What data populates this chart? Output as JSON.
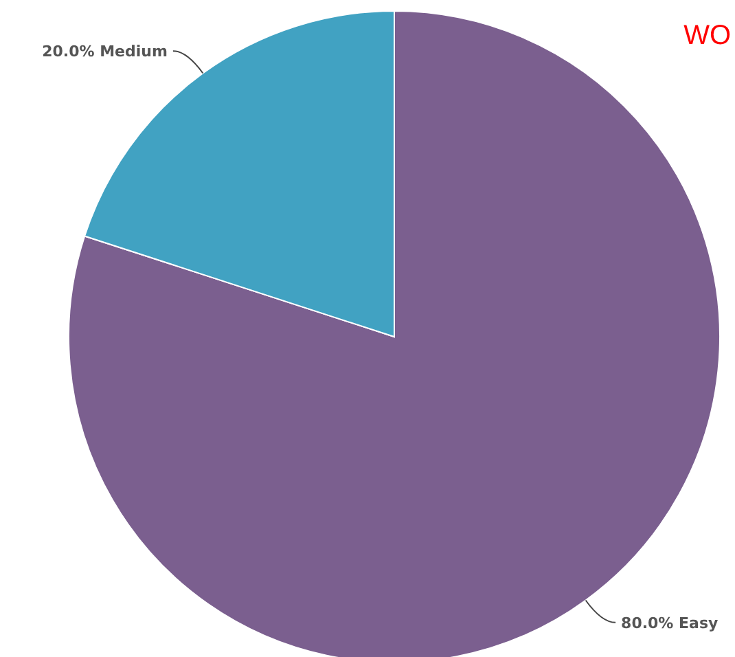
{
  "chart_data": {
    "type": "pie",
    "title": "WO",
    "categories": [
      "Easy",
      "Medium"
    ],
    "values": [
      80,
      20
    ],
    "colors": [
      "#7b5f8f",
      "#41a2c2"
    ],
    "value_labels": [
      "80.0%",
      "20.0%"
    ]
  }
}
